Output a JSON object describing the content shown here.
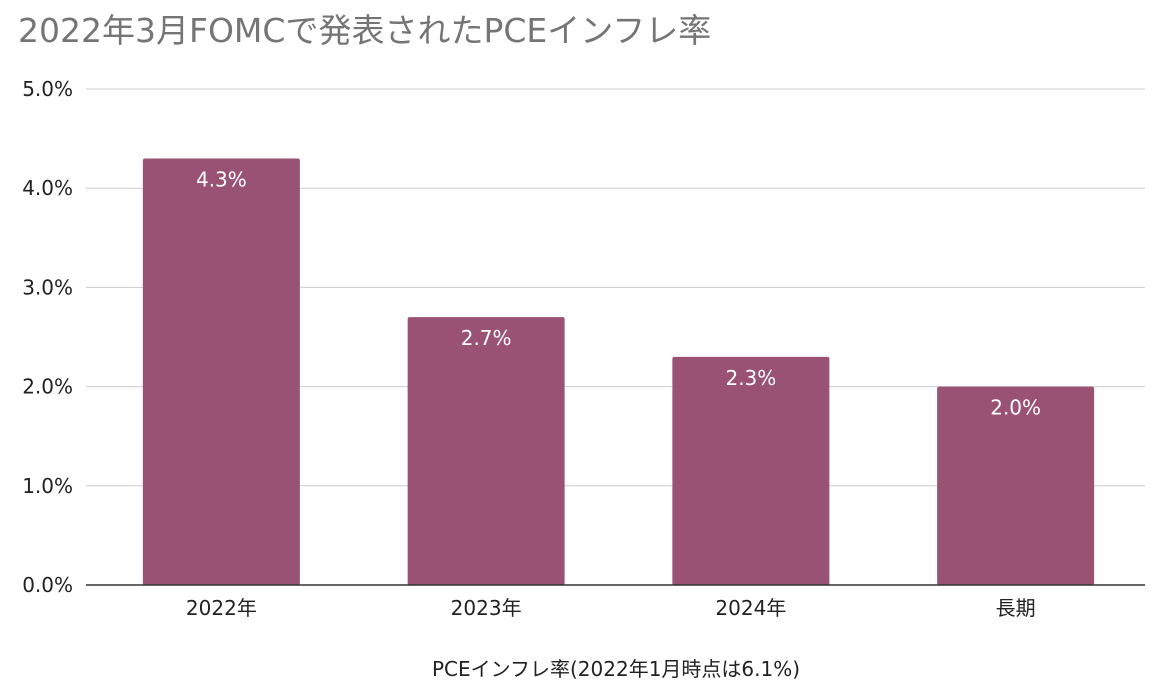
{
  "chart_data": {
    "type": "bar",
    "title": "2022年3月FOMCで発表されたPCEインフレ率",
    "xlabel": "PCEインフレ率(2022年1月時点は6.1%)",
    "ylabel": "",
    "categories": [
      "2022年",
      "2023年",
      "2024年",
      "長期"
    ],
    "values": [
      4.3,
      2.7,
      2.3,
      2.0
    ],
    "data_labels": [
      "4.3%",
      "2.7%",
      "2.3%",
      "2.0%"
    ],
    "ylim": [
      0,
      5
    ],
    "yticks": [
      0,
      1,
      2,
      3,
      4,
      5
    ],
    "ytick_labels": [
      "0.0%",
      "1.0%",
      "2.0%",
      "3.0%",
      "4.0%",
      "5.0%"
    ],
    "grid": true,
    "legend": "none",
    "bar_color": "#9a5274"
  }
}
